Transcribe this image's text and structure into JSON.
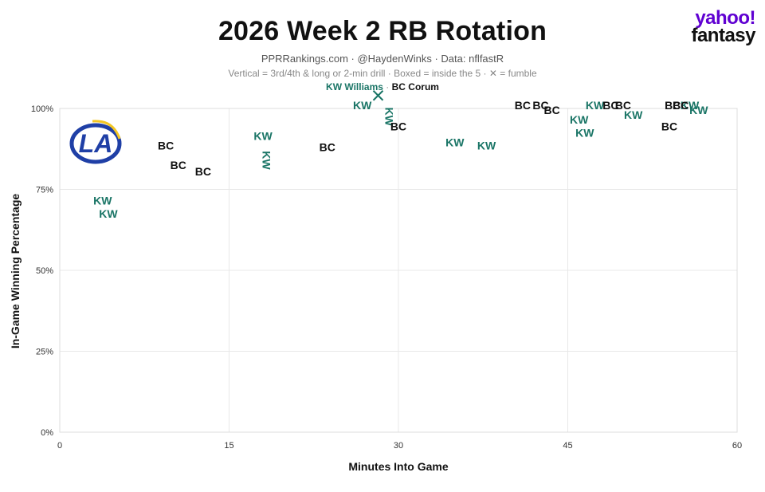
{
  "header": {
    "title": "2026 Week 2 RB Rotation",
    "subtitle": "PPRRankings.com · @HaydenWinks · Data: nflfastR",
    "note": "Vertical = 3rd/4th & long or 2-min drill · Boxed = inside the 5 · ✕ = fumble"
  },
  "brand": {
    "line1": "yahoo!",
    "line2": "fantasy",
    "color": "#6001d2"
  },
  "team_logo": {
    "text": "LA",
    "icon": "rams-logo",
    "color": "#1f3fa6"
  },
  "chart_data": {
    "type": "scatter",
    "xlabel": "Minutes Into Game",
    "ylabel": "In-Game Winning Percentage",
    "xlim": [
      0,
      60
    ],
    "ylim": [
      0,
      100
    ],
    "xticks": [
      0,
      15,
      30,
      45,
      60
    ],
    "yticks": [
      0,
      25,
      50,
      75,
      100
    ],
    "ytick_labels": [
      "0%",
      "25%",
      "50%",
      "75%",
      "100%"
    ],
    "grid": true,
    "legend": {
      "position": "top-center",
      "entries": [
        {
          "label": "KW Williams",
          "color": "#1a7566"
        },
        {
          "label": "BC Corum",
          "color": "#111111"
        }
      ]
    },
    "series": [
      {
        "name": "KW Williams",
        "label": "KW",
        "color": "#1a7566",
        "points": [
          {
            "x": 3.8,
            "y": 71.5,
            "vertical": false
          },
          {
            "x": 4.3,
            "y": 67.5,
            "vertical": false
          },
          {
            "x": 18.0,
            "y": 91.5,
            "vertical": false
          },
          {
            "x": 18.3,
            "y": 84.0,
            "vertical": true
          },
          {
            "x": 26.8,
            "y": 101.0,
            "vertical": false
          },
          {
            "x": 29.2,
            "y": 97.5,
            "vertical": true
          },
          {
            "x": 35.0,
            "y": 89.5,
            "vertical": false
          },
          {
            "x": 37.8,
            "y": 88.5,
            "vertical": false
          },
          {
            "x": 46.0,
            "y": 96.5,
            "vertical": false
          },
          {
            "x": 46.5,
            "y": 92.5,
            "vertical": false
          },
          {
            "x": 47.4,
            "y": 101.0,
            "vertical": false
          },
          {
            "x": 50.8,
            "y": 98.0,
            "vertical": false
          },
          {
            "x": 55.8,
            "y": 101.0,
            "vertical": false
          },
          {
            "x": 56.6,
            "y": 99.5,
            "vertical": false
          }
        ],
        "fumbles": [
          {
            "x": 28.2,
            "y": 104.0
          }
        ]
      },
      {
        "name": "BC Corum",
        "label": "BC",
        "color": "#111111",
        "points": [
          {
            "x": 9.4,
            "y": 88.5,
            "vertical": false
          },
          {
            "x": 10.5,
            "y": 82.5,
            "vertical": false
          },
          {
            "x": 12.7,
            "y": 80.5,
            "vertical": false
          },
          {
            "x": 23.7,
            "y": 88.0,
            "vertical": false
          },
          {
            "x": 30.0,
            "y": 94.5,
            "vertical": false
          },
          {
            "x": 41.0,
            "y": 101.0,
            "vertical": false
          },
          {
            "x": 42.6,
            "y": 101.0,
            "vertical": false
          },
          {
            "x": 43.6,
            "y": 99.5,
            "vertical": false
          },
          {
            "x": 48.8,
            "y": 101.0,
            "vertical": false
          },
          {
            "x": 49.9,
            "y": 101.0,
            "vertical": false
          },
          {
            "x": 54.0,
            "y": 94.5,
            "vertical": false
          },
          {
            "x": 54.3,
            "y": 101.0,
            "vertical": false
          },
          {
            "x": 55.0,
            "y": 101.0,
            "vertical": false
          }
        ],
        "fumbles": []
      }
    ]
  }
}
